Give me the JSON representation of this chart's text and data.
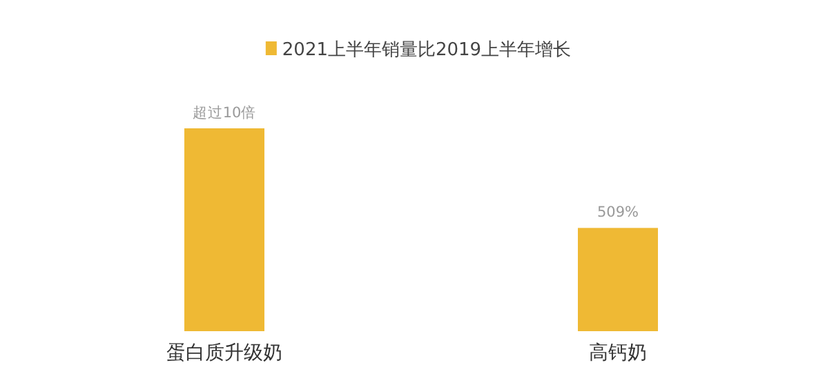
{
  "chart_data": {
    "type": "bar",
    "categories": [
      "蛋白质升级奶",
      "高钙奶"
    ],
    "series": [
      {
        "name": "2021上半年销量比2019上半年增长",
        "color": "#efb934",
        "values": [
          1000,
          509
        ],
        "value_labels": [
          "超过10倍",
          "509%"
        ]
      }
    ],
    "legend": "top"
  }
}
